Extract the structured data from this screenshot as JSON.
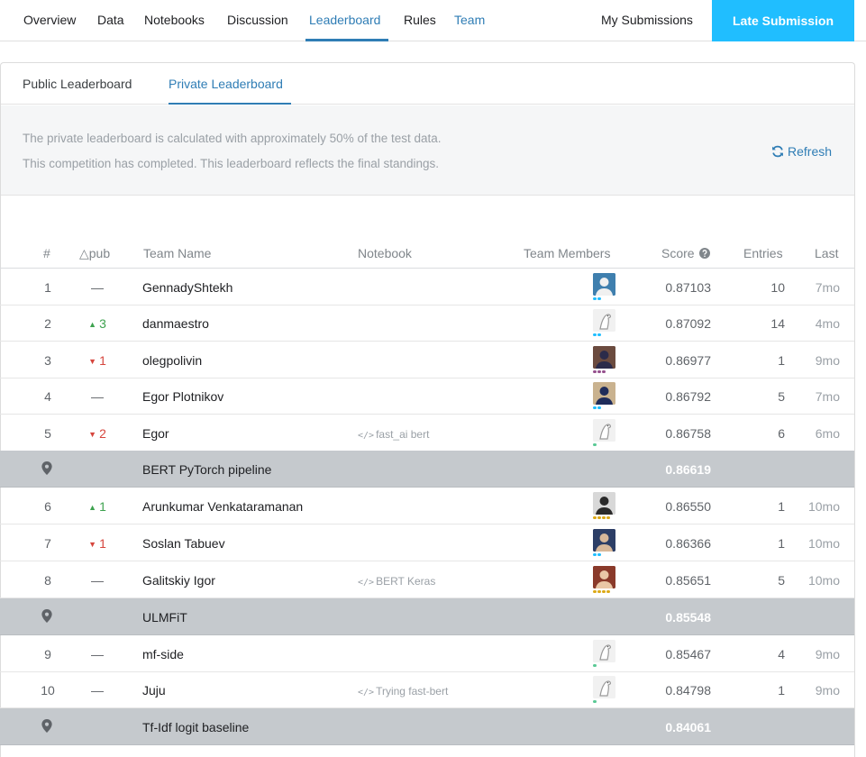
{
  "nav": {
    "tabs": [
      "Overview",
      "Data",
      "Notebooks",
      "Discussion",
      "Leaderboard",
      "Rules",
      "Team"
    ],
    "my_submissions": "My Submissions",
    "late_submission": "Late Submission"
  },
  "leaderboard_tabs": [
    "Public Leaderboard",
    "Private Leaderboard"
  ],
  "info": {
    "line1": "The private leaderboard is calculated with approximately 50% of the test data.",
    "line2": "This competition has completed. This leaderboard reflects the final standings.",
    "refresh": "Refresh"
  },
  "columns": {
    "rank": "#",
    "delta": "△pub",
    "team": "Team Name",
    "notebook": "Notebook",
    "members": "Team Members",
    "score": "Score",
    "entries": "Entries",
    "last": "Last"
  },
  "rows": [
    {
      "rank": "1",
      "delta": "—",
      "dir": "none",
      "team": "GennadyShtekh",
      "notebook": "",
      "score": "0.87103",
      "entries": "10",
      "last": "7mo",
      "avatar": "photo-blue",
      "tier": "expert"
    },
    {
      "rank": "2",
      "delta": "3",
      "dir": "up",
      "team": "danmaestro",
      "notebook": "",
      "score": "0.87092",
      "entries": "14",
      "last": "4mo",
      "avatar": "default",
      "tier": "contributor"
    },
    {
      "rank": "3",
      "delta": "1",
      "dir": "down",
      "team": "olegpolivin",
      "notebook": "",
      "score": "0.86977",
      "entries": "1",
      "last": "9mo",
      "avatar": "photo-person",
      "tier": "master"
    },
    {
      "rank": "4",
      "delta": "—",
      "dir": "none",
      "team": "Egor Plotnikov",
      "notebook": "",
      "score": "0.86792",
      "entries": "5",
      "last": "7mo",
      "avatar": "photo-glasses",
      "tier": "contributor"
    },
    {
      "rank": "5",
      "delta": "2",
      "dir": "down",
      "team": "Egor",
      "notebook": "fast_ai bert",
      "score": "0.86758",
      "entries": "6",
      "last": "6mo",
      "avatar": "default",
      "tier": "novice"
    },
    {
      "bench": true,
      "team": "BERT PyTorch pipeline",
      "score": "0.86619"
    },
    {
      "rank": "6",
      "delta": "1",
      "dir": "up",
      "team": "Arunkumar Venkataramanan",
      "notebook": "",
      "score": "0.86550",
      "entries": "1",
      "last": "10mo",
      "avatar": "photo-bw",
      "tier": "grandmaster"
    },
    {
      "rank": "7",
      "delta": "1",
      "dir": "down",
      "team": "Soslan Tabuev",
      "notebook": "",
      "score": "0.86366",
      "entries": "1",
      "last": "10mo",
      "avatar": "photo-navy",
      "tier": "contributor"
    },
    {
      "rank": "8",
      "delta": "—",
      "dir": "none",
      "team": "Galitskiy Igor",
      "notebook": "BERT Keras",
      "score": "0.85651",
      "entries": "5",
      "last": "10mo",
      "avatar": "photo-red",
      "tier": "grandmaster"
    },
    {
      "bench": true,
      "team": "ULMFiT",
      "score": "0.85548"
    },
    {
      "rank": "9",
      "delta": "—",
      "dir": "none",
      "team": "mf-side",
      "notebook": "",
      "score": "0.85467",
      "entries": "4",
      "last": "9mo",
      "avatar": "default",
      "tier": "novice"
    },
    {
      "rank": "10",
      "delta": "—",
      "dir": "none",
      "team": "Juju",
      "notebook": "Trying fast-bert",
      "score": "0.84798",
      "entries": "1",
      "last": "9mo",
      "avatar": "default",
      "tier": "novice"
    },
    {
      "bench": true,
      "team": "Tf-Idf logit baseline",
      "score": "0.84061"
    }
  ],
  "colors": {
    "accent": "#20beff",
    "link": "#2f7db5",
    "up": "#3ea24f",
    "down": "#d6453d",
    "benchmark_row": "#c5c9cd"
  },
  "icons": {
    "refresh": "refresh-icon",
    "benchmark": "map-pin-icon",
    "score_help": "help-circle-icon",
    "notebook": "code-icon"
  }
}
